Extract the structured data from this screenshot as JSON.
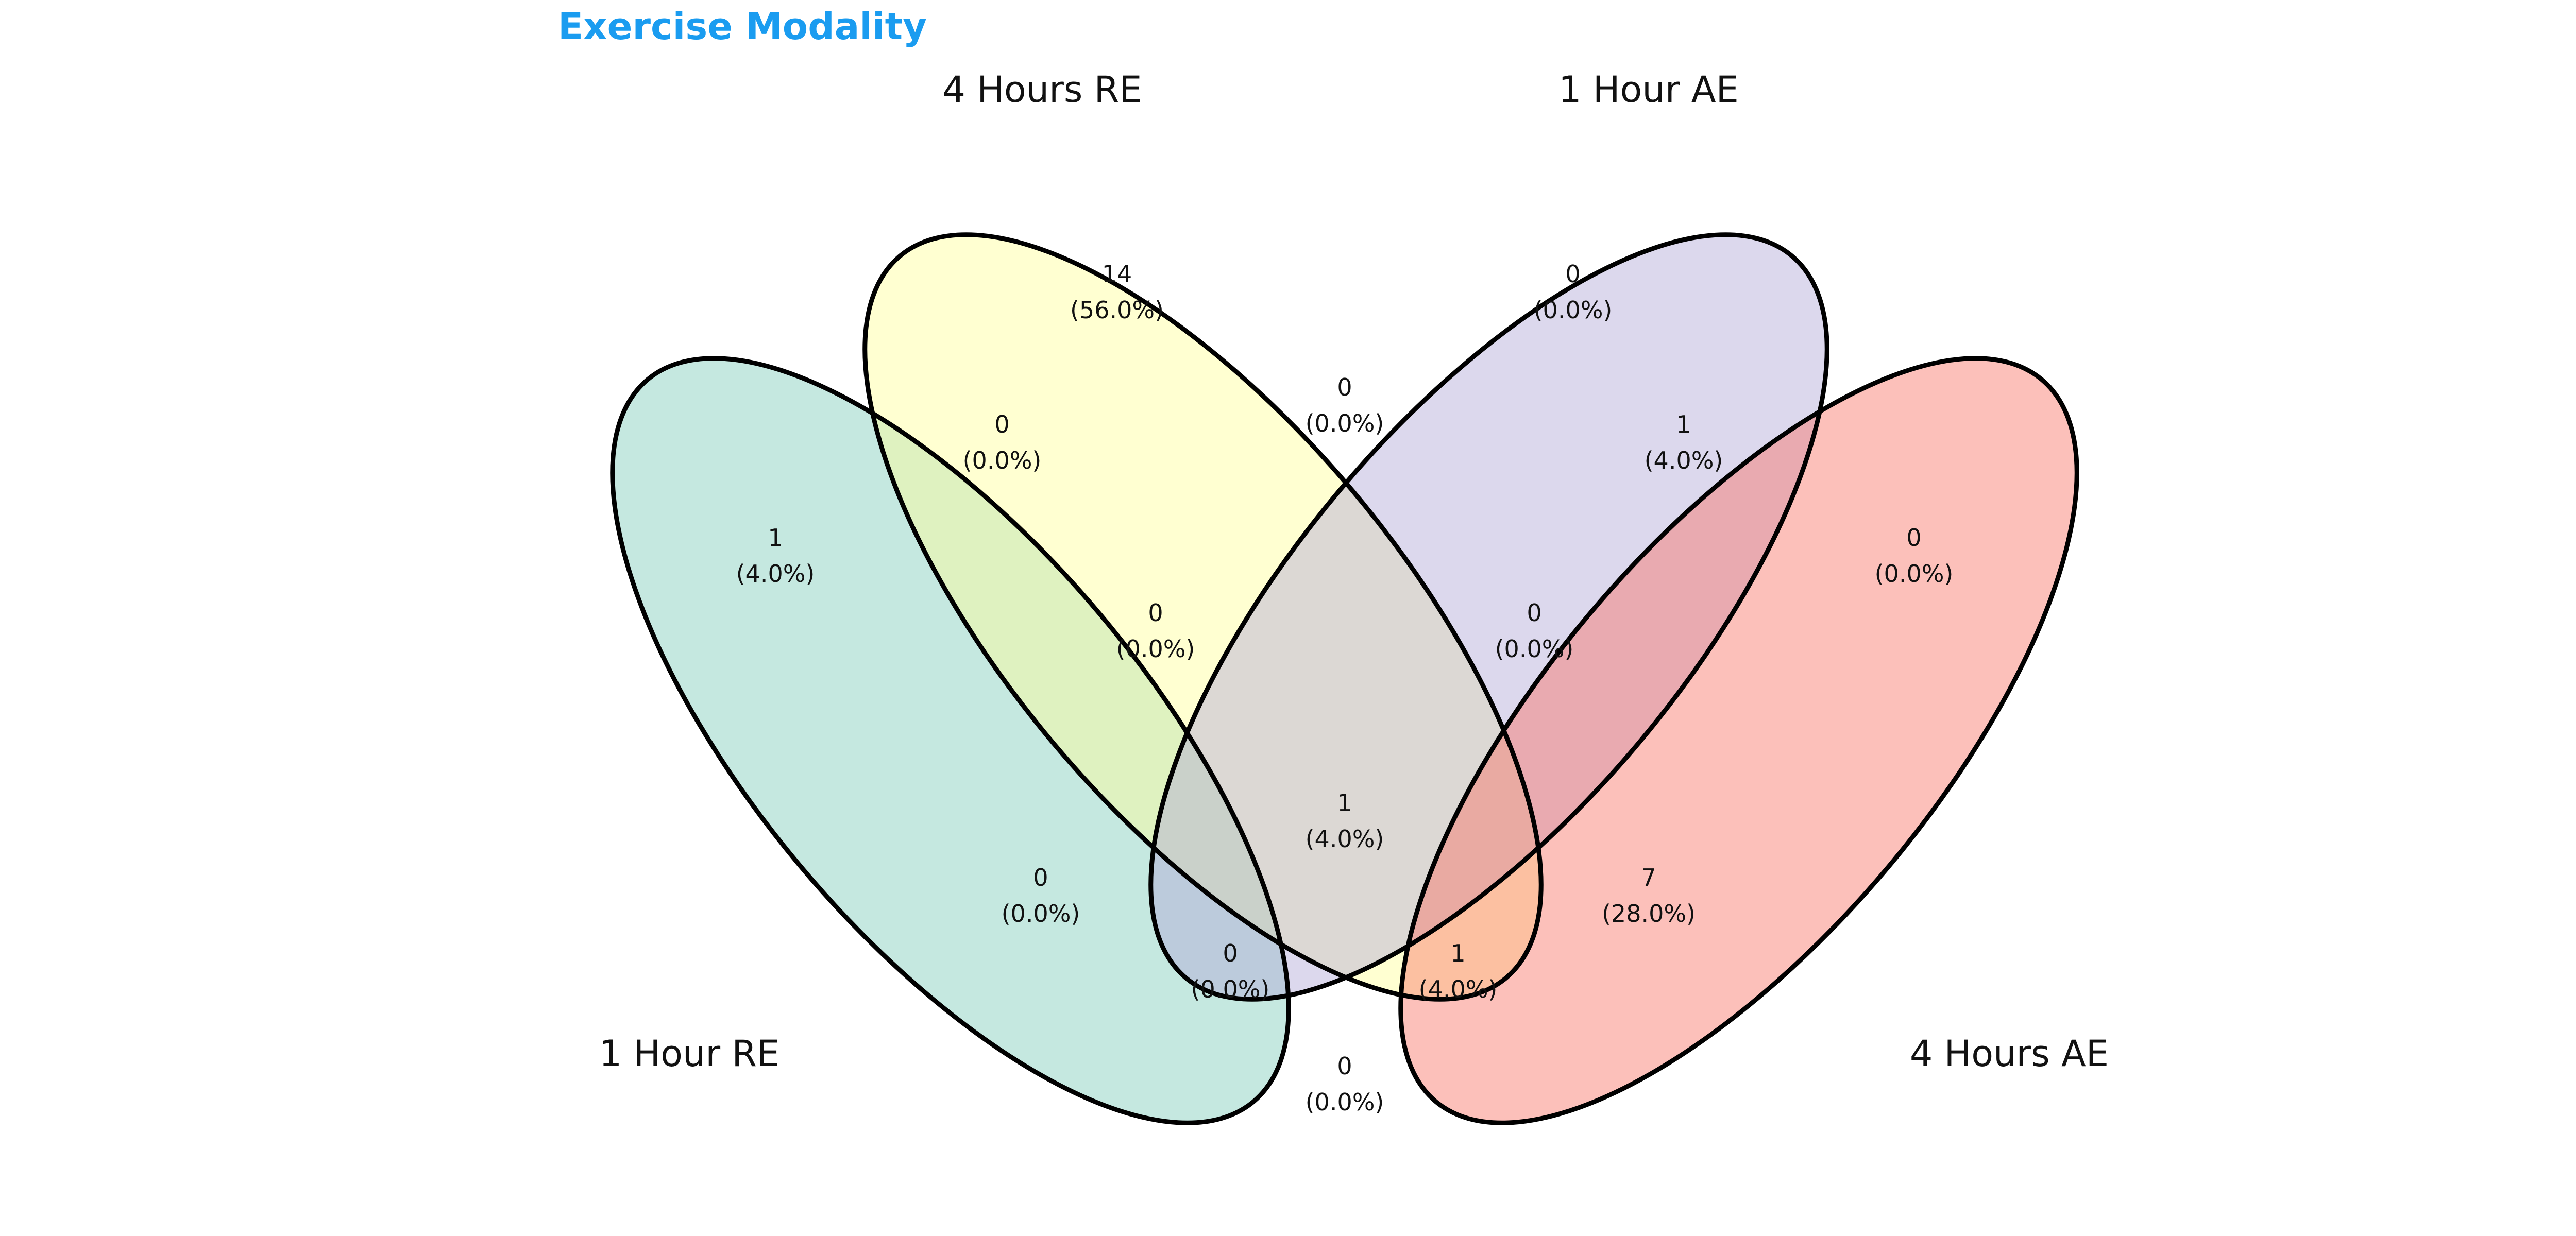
{
  "title": "Exercise Modality",
  "colors": {
    "title": "#1a9cf0",
    "outline": "#000000",
    "set_1h_re": "#7fcdbb",
    "set_4h_re": "#ffff99",
    "set_1h_ae": "#b2a8d6",
    "set_4h_ae": "#f97366"
  },
  "sets": [
    {
      "key": "1h_re",
      "label": "1 Hour RE"
    },
    {
      "key": "4h_re",
      "label": "4 Hours RE"
    },
    {
      "key": "1h_ae",
      "label": "1 Hour AE"
    },
    {
      "key": "4h_ae",
      "label": "4 Hours AE"
    }
  ],
  "regions": [
    {
      "key": "4h_re_only",
      "count": "14",
      "percent": "(56.0%)"
    },
    {
      "key": "1h_ae_only",
      "count": "0",
      "percent": "(0.0%)"
    },
    {
      "key": "1h_re_4h_re",
      "count": "0",
      "percent": "(0.0%)"
    },
    {
      "key": "4h_re_1h_ae",
      "count": "0",
      "percent": "(0.0%)"
    },
    {
      "key": "1h_ae_4h_ae",
      "count": "1",
      "percent": "(4.0%)"
    },
    {
      "key": "1h_re_only",
      "count": "1",
      "percent": "(4.0%)"
    },
    {
      "key": "4h_ae_only",
      "count": "0",
      "percent": "(0.0%)"
    },
    {
      "key": "1h_re_4h_re_1h_ae",
      "count": "0",
      "percent": "(0.0%)"
    },
    {
      "key": "4h_re_1h_ae_4h_ae",
      "count": "0",
      "percent": "(0.0%)"
    },
    {
      "key": "all_four",
      "count": "1",
      "percent": "(4.0%)"
    },
    {
      "key": "1h_re_1h_ae",
      "count": "0",
      "percent": "(0.0%)"
    },
    {
      "key": "4h_re_4h_ae",
      "count": "7",
      "percent": "(28.0%)"
    },
    {
      "key": "1h_re_1h_ae_4h_ae",
      "count": "0",
      "percent": "(0.0%)"
    },
    {
      "key": "1h_re_4h_re_4h_ae",
      "count": "1",
      "percent": "(4.0%)"
    },
    {
      "key": "1h_re_4h_ae",
      "count": "0",
      "percent": "(0.0%)"
    }
  ]
}
